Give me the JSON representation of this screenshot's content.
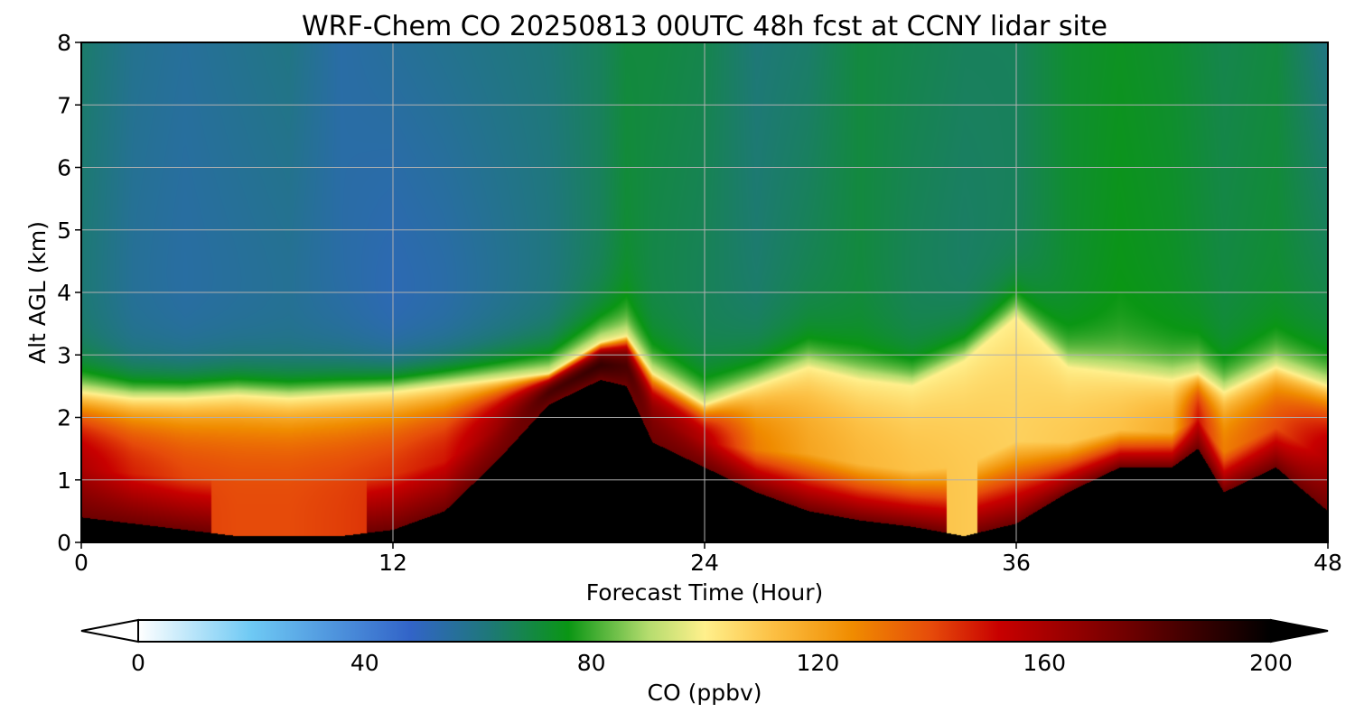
{
  "title": "WRF-Chem CO  20250813 00UTC 48h fcst at CCNY lidar site",
  "chart_data": {
    "type": "heatmap",
    "xlabel": "Forecast Time (Hour)",
    "ylabel": "Alt AGL (km)",
    "xlim": [
      0,
      48
    ],
    "ylim": [
      0,
      8
    ],
    "x_ticks": [
      "0",
      "12",
      "24",
      "36",
      "48"
    ],
    "x_tick_values": [
      0,
      12,
      24,
      36,
      48
    ],
    "y_ticks": [
      "0",
      "1",
      "2",
      "3",
      "4",
      "5",
      "6",
      "7",
      "8"
    ],
    "y_tick_values": [
      0,
      1,
      2,
      3,
      4,
      5,
      6,
      7,
      8
    ],
    "grid": true,
    "colorbar": {
      "label": "CO  (ppbv)",
      "range": [
        0,
        200
      ],
      "ticks": [
        "0",
        "40",
        "80",
        "120",
        "160",
        "200"
      ],
      "tick_values": [
        0,
        40,
        80,
        120,
        160,
        200
      ],
      "extend": "both",
      "stops": [
        {
          "v": 0,
          "c": "#ffffff"
        },
        {
          "v": 20,
          "c": "#6ec9f4"
        },
        {
          "v": 48,
          "c": "#3264c8"
        },
        {
          "v": 62,
          "c": "#1e7878"
        },
        {
          "v": 76,
          "c": "#0a9614"
        },
        {
          "v": 90,
          "c": "#b4dc6e"
        },
        {
          "v": 100,
          "c": "#fff08c"
        },
        {
          "v": 112,
          "c": "#fcc044"
        },
        {
          "v": 126,
          "c": "#f08c00"
        },
        {
          "v": 140,
          "c": "#e64b0a"
        },
        {
          "v": 152,
          "c": "#c80000"
        },
        {
          "v": 175,
          "c": "#6e0000"
        },
        {
          "v": 200,
          "c": "#000000"
        }
      ]
    },
    "x_hours": [
      0,
      2,
      4,
      6,
      8,
      10,
      12,
      14,
      16,
      18,
      20,
      21,
      22,
      24,
      26,
      28,
      30,
      32,
      34,
      36,
      38,
      40,
      42,
      43,
      44,
      46,
      48
    ],
    "boundary_layer_top_km": [
      2.4,
      2.3,
      2.3,
      2.35,
      2.3,
      2.35,
      2.4,
      2.5,
      2.6,
      2.7,
      3.2,
      3.3,
      2.7,
      2.2,
      2.5,
      2.8,
      2.6,
      2.5,
      2.9,
      3.6,
      2.8,
      2.7,
      2.6,
      2.7,
      2.4,
      2.8,
      2.5
    ],
    "dark_core_top_km": [
      0.4,
      0.3,
      0.2,
      0.1,
      0.1,
      0.1,
      0.2,
      0.5,
      1.3,
      2.2,
      2.6,
      2.5,
      1.6,
      1.2,
      0.8,
      0.5,
      0.35,
      0.25,
      0.1,
      0.3,
      0.8,
      1.2,
      1.2,
      1.5,
      0.8,
      1.2,
      0.5
    ],
    "pbl_peak_ppbv": [
      160,
      148,
      142,
      140,
      140,
      142,
      145,
      150,
      165,
      185,
      190,
      185,
      170,
      160,
      130,
      120,
      115,
      112,
      110,
      108,
      110,
      112,
      118,
      150,
      130,
      140,
      160
    ],
    "free_troposphere_ppbv": [
      62,
      56,
      54,
      55,
      56,
      54,
      50,
      52,
      56,
      60,
      66,
      72,
      68,
      66,
      64,
      68,
      70,
      66,
      64,
      66,
      72,
      76,
      74,
      72,
      70,
      72,
      70
    ],
    "upper_ppbv": [
      64,
      58,
      56,
      58,
      60,
      54,
      56,
      58,
      60,
      62,
      66,
      70,
      70,
      68,
      62,
      64,
      70,
      68,
      66,
      66,
      72,
      74,
      72,
      70,
      68,
      70,
      60
    ]
  }
}
